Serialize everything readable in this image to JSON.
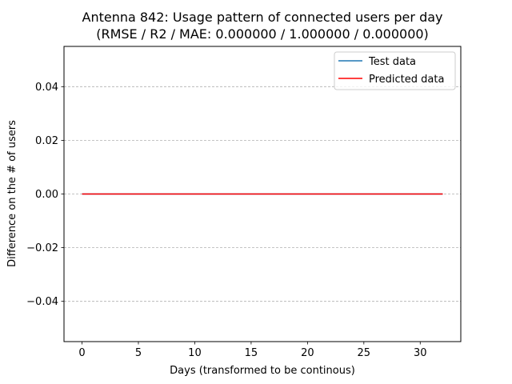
{
  "chart_data": {
    "type": "line",
    "title_line1": "Antenna 842: Usage pattern of connected users per day",
    "title_line2": "(RMSE / R2 / MAE: 0.000000 / 1.000000 / 0.000000)",
    "xlabel": "Days (transformed to be continous)",
    "ylabel": "Difference on the # of users",
    "xlim": [
      -1.6,
      33.6
    ],
    "ylim": [
      -0.055,
      0.055
    ],
    "xticks": [
      0,
      5,
      10,
      15,
      20,
      25,
      30
    ],
    "yticks": [
      0.04,
      0.02,
      0.0,
      -0.02,
      -0.04
    ],
    "xtick_labels": [
      "0",
      "5",
      "10",
      "15",
      "20",
      "25",
      "30"
    ],
    "ytick_labels": [
      "0.04",
      "0.02",
      "0.00",
      "−0.02",
      "−0.04"
    ],
    "grid": {
      "axis": "y",
      "style": "dashed"
    },
    "legend_placement": "top-right",
    "series": [
      {
        "name": "Test data",
        "color": "#1f77b4",
        "x": [
          0,
          32
        ],
        "y": [
          0,
          0
        ]
      },
      {
        "name": "Predicted data",
        "color": "#ff0000",
        "x": [
          0,
          32
        ],
        "y": [
          0,
          0
        ]
      }
    ]
  }
}
